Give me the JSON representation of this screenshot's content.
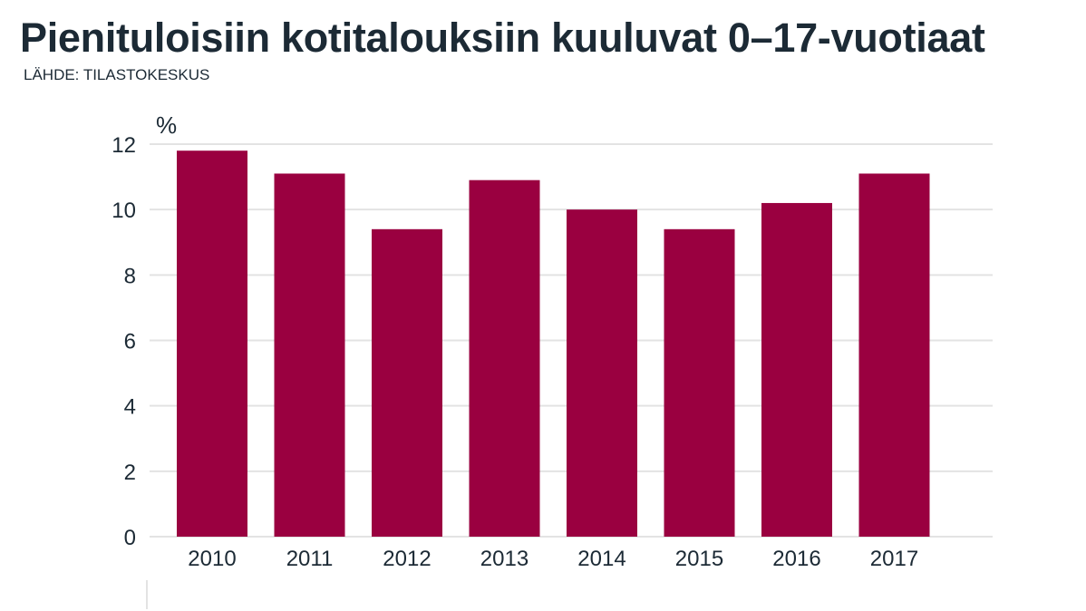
{
  "title": "Pienituloisiin kotitalouksiin kuuluvat 0–17-vuotiaat",
  "source": "LÄHDE: TILASTOKESKUS",
  "colors": {
    "bar": "#9a0040",
    "grid": "#e3e3e3",
    "text": "#1c2a35"
  },
  "chart_data": {
    "type": "bar",
    "title": "Pienituloisiin kotitalouksiin kuuluvat 0–17-vuotiaat",
    "xlabel": "",
    "ylabel": "%",
    "categories": [
      "2010",
      "2011",
      "2012",
      "2013",
      "2014",
      "2015",
      "2016",
      "2017"
    ],
    "values": [
      11.8,
      11.1,
      9.4,
      10.9,
      10.0,
      9.4,
      10.2,
      11.1
    ],
    "ylim": [
      0,
      12
    ],
    "yticks": [
      0,
      2,
      4,
      6,
      8,
      10,
      12
    ],
    "grid": true,
    "legend": "none"
  }
}
